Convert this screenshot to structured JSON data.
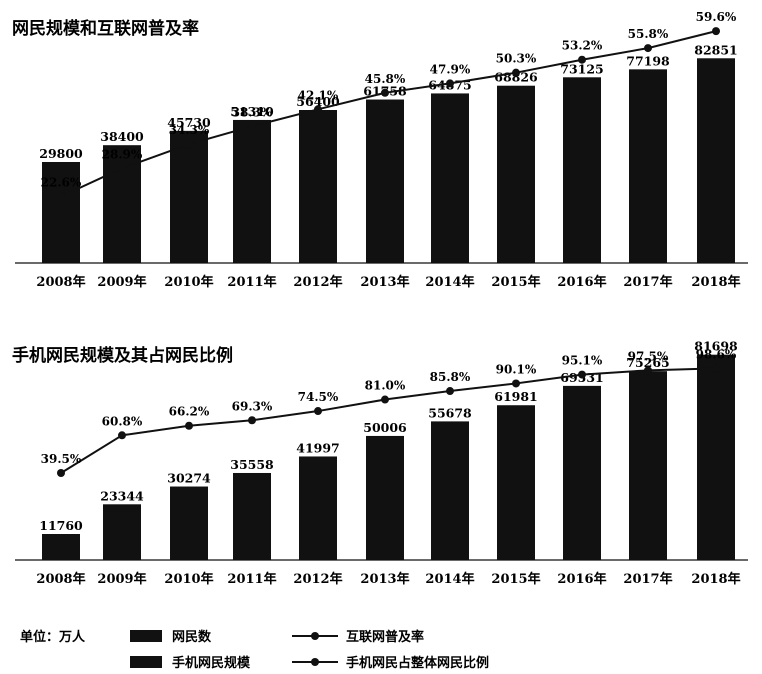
{
  "legend": {
    "unit": "单位：万人",
    "netizens": "网民数",
    "mobile_netizens": "手机网民规模",
    "penetration": "互联网普及率",
    "mobile_share": "手机网民占整体网民比例"
  },
  "chart_data": [
    {
      "type": "bar",
      "title": "网民规模和互联网普及率",
      "categories": [
        "2008年",
        "2009年",
        "2010年",
        "2011年",
        "2012年",
        "2013年",
        "2014年",
        "2015年",
        "2016年",
        "2017年",
        "2018年"
      ],
      "series": [
        {
          "name": "网民数",
          "type": "bar",
          "values": [
            29800,
            38400,
            45730,
            51310,
            56400,
            61758,
            64875,
            68826,
            73125,
            77198,
            82851
          ],
          "labels": [
            "29800",
            "38400",
            "45730",
            "51310",
            "56400",
            "61758",
            "64875",
            "68826",
            "73125",
            "77198",
            "82851"
          ]
        },
        {
          "name": "互联网普及率",
          "type": "line",
          "values": [
            22.6,
            28.9,
            34.3,
            38.3,
            42.1,
            45.8,
            47.9,
            50.3,
            53.2,
            55.8,
            59.6
          ],
          "labels": [
            "22.6%",
            "28.9%",
            "34.3%",
            "38.3%",
            "42.1%",
            "45.8%",
            "47.9%",
            "50.3%",
            "53.2%",
            "55.8%",
            "59.6%"
          ]
        }
      ],
      "bar_color": "#111111"
    },
    {
      "type": "bar",
      "title": "手机网民规模及其占网民比例",
      "categories": [
        "2008年",
        "2009年",
        "2010年",
        "2011年",
        "2012年",
        "2013年",
        "2014年",
        "2015年",
        "2016年",
        "2017年",
        "2018年"
      ],
      "series": [
        {
          "name": "手机网民规模",
          "type": "bar",
          "values": [
            11760,
            23344,
            30274,
            35558,
            41997,
            50006,
            55678,
            61981,
            69531,
            75265,
            81698
          ],
          "labels": [
            "11760",
            "23344",
            "30274",
            "35558",
            "41997",
            "50006",
            "55678",
            "61981",
            "69531",
            "75265",
            "81698"
          ]
        },
        {
          "name": "手机网民占整体网民比例",
          "type": "line",
          "values": [
            39.5,
            60.8,
            66.2,
            69.3,
            74.5,
            81.0,
            85.8,
            90.1,
            95.1,
            97.5,
            98.6
          ],
          "labels": [
            "39.5%",
            "60.8%",
            "66.2%",
            "69.3%",
            "74.5%",
            "81.0%",
            "85.8%",
            "90.1%",
            "95.1%",
            "97.5%",
            "98.6%"
          ]
        }
      ],
      "bar_color": "#111111"
    }
  ]
}
